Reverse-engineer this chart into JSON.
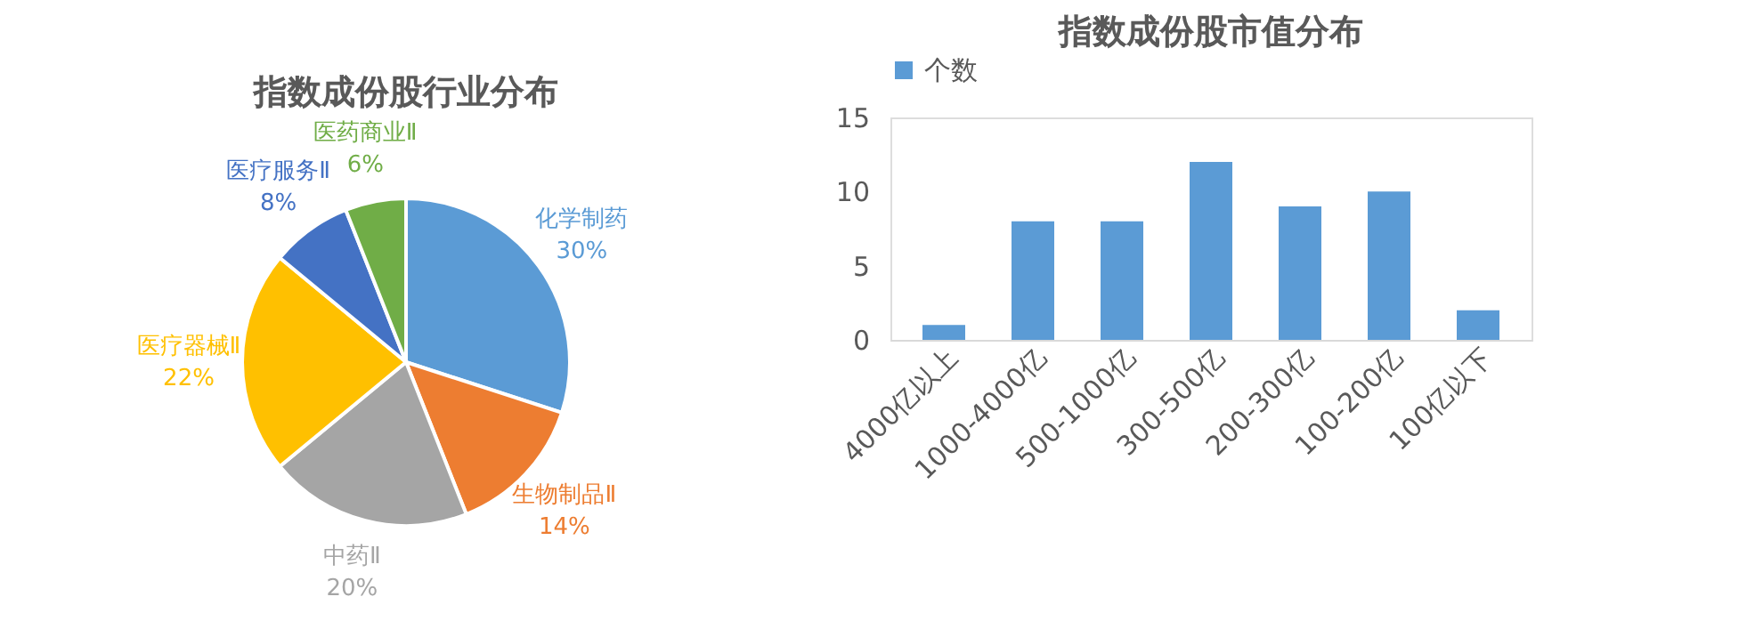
{
  "chart_data": [
    {
      "type": "pie",
      "title": "指数成份股行业分布",
      "categories": [
        "化学制药",
        "生物制品Ⅱ",
        "中药Ⅱ",
        "医疗器械Ⅱ",
        "医疗服务Ⅱ",
        "医药商业Ⅱ"
      ],
      "values": [
        30,
        14,
        20,
        22,
        8,
        6
      ],
      "colors": [
        "#5b9bd5",
        "#ed7d31",
        "#a5a5a5",
        "#ffc000",
        "#4472c4",
        "#70ad47"
      ],
      "value_labels": [
        "30%",
        "14%",
        "20%",
        "22%",
        "8%",
        "6%"
      ]
    },
    {
      "type": "bar",
      "title": "指数成份股市值分布",
      "categories": [
        "4000亿以上",
        "1000-4000亿",
        "500-1000亿",
        "300-500亿",
        "200-300亿",
        "100-200亿",
        "100亿以下"
      ],
      "series": [
        {
          "name": "个数",
          "color": "#5b9bd5",
          "values": [
            1,
            8,
            8,
            12,
            9,
            10,
            2
          ]
        }
      ],
      "ylim": [
        0,
        15
      ],
      "yticks": [
        0,
        5,
        10,
        15
      ],
      "legend": "top",
      "grid": false
    }
  ]
}
